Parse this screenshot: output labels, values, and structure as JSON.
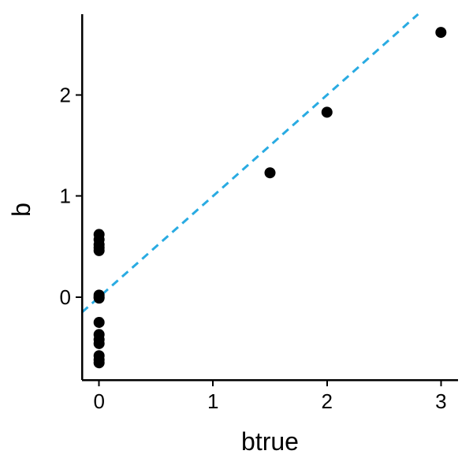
{
  "chart_data": {
    "type": "scatter",
    "xlabel": "btrue",
    "ylabel": "b",
    "xlim": [
      -0.15,
      3.15
    ],
    "ylim": [
      -0.82,
      2.8
    ],
    "x_ticks": [
      0,
      1,
      2,
      3
    ],
    "x_tick_labels": [
      "0",
      "1",
      "2",
      "3"
    ],
    "y_ticks": [
      0,
      1,
      2
    ],
    "y_tick_labels": [
      "0",
      "1",
      "2"
    ],
    "grid": false,
    "legend": "none",
    "reference_line": {
      "slope": 1,
      "intercept": 0,
      "style": "dashed",
      "color": "#29abe2"
    },
    "point_color": "#000000",
    "series": [
      {
        "points": [
          {
            "x": 0,
            "y": 0.62
          },
          {
            "x": 0,
            "y": 0.57
          },
          {
            "x": 0,
            "y": 0.52
          },
          {
            "x": 0,
            "y": 0.49
          },
          {
            "x": 0,
            "y": 0.46
          },
          {
            "x": 0,
            "y": 0.02
          },
          {
            "x": 0,
            "y": 0.0
          },
          {
            "x": 0,
            "y": -0.01
          },
          {
            "x": 0,
            "y": -0.25
          },
          {
            "x": 0,
            "y": -0.37
          },
          {
            "x": 0,
            "y": -0.42
          },
          {
            "x": 0,
            "y": -0.46
          },
          {
            "x": 0,
            "y": -0.58
          },
          {
            "x": 0,
            "y": -0.62
          },
          {
            "x": 0,
            "y": -0.65
          },
          {
            "x": 1.5,
            "y": 1.23
          },
          {
            "x": 2.0,
            "y": 1.83
          },
          {
            "x": 3.0,
            "y": 2.62
          }
        ]
      }
    ]
  }
}
